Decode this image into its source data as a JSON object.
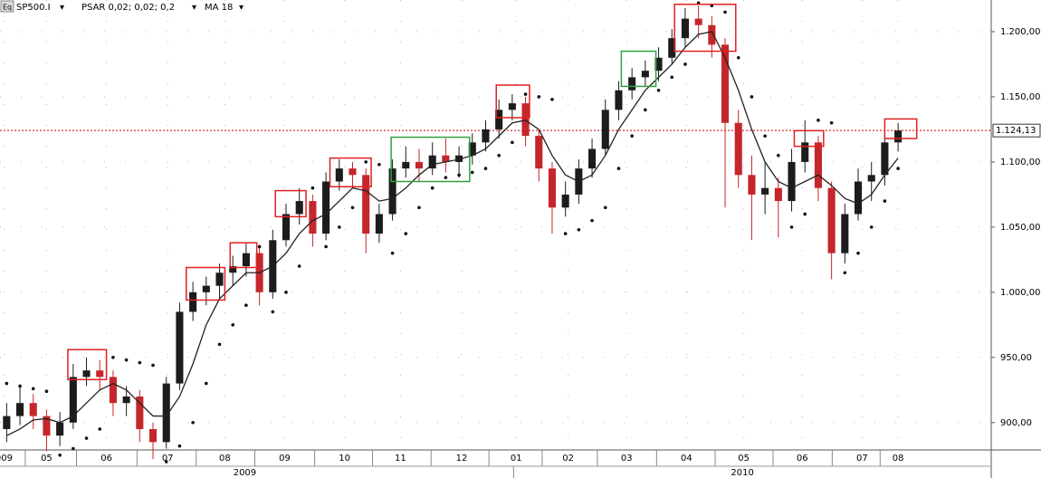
{
  "chart_data": {
    "type": "candlestick",
    "symbol": "SP500.I",
    "indicators": [
      "PSAR 0,02; 0,02; 0,2",
      "MA 18"
    ],
    "menu_icon": "Eq",
    "up_color": "#1c1c1c",
    "down_color": "#c4262b",
    "xlim": [
      -0.5,
      74
    ],
    "ylim": [
      879,
      1224.3
    ],
    "grid": true,
    "x": [
      0,
      1,
      2,
      3,
      4,
      5,
      6,
      7,
      8,
      9,
      10,
      11,
      12,
      13,
      14,
      15,
      16,
      17,
      18,
      19,
      20,
      21,
      22,
      23,
      24,
      25,
      26,
      27,
      28,
      29,
      30,
      31,
      32,
      33,
      34,
      35,
      36,
      37,
      38,
      39,
      40,
      41,
      42,
      43,
      44,
      45,
      46,
      47,
      48,
      49,
      50,
      51,
      52,
      53,
      54,
      55,
      56,
      57,
      58,
      59,
      60,
      61,
      62,
      63,
      64,
      65,
      66,
      67
    ],
    "candles": [
      [
        895,
        915,
        885,
        905
      ],
      [
        905,
        928,
        898,
        915
      ],
      [
        915,
        922,
        895,
        905
      ],
      [
        905,
        910,
        878,
        890
      ],
      [
        890,
        908,
        882,
        900
      ],
      [
        900,
        945,
        895,
        935
      ],
      [
        935,
        950,
        928,
        940
      ],
      [
        940,
        948,
        925,
        935
      ],
      [
        935,
        940,
        905,
        915
      ],
      [
        915,
        928,
        905,
        920
      ],
      [
        920,
        925,
        885,
        895
      ],
      [
        895,
        900,
        872,
        885
      ],
      [
        885,
        935,
        880,
        930
      ],
      [
        930,
        992,
        925,
        985
      ],
      [
        985,
        1008,
        978,
        1000
      ],
      [
        1000,
        1012,
        990,
        1005
      ],
      [
        1005,
        1022,
        995,
        1015
      ],
      [
        1015,
        1028,
        1005,
        1020
      ],
      [
        1020,
        1038,
        1012,
        1030
      ],
      [
        1030,
        1035,
        990,
        1000
      ],
      [
        1000,
        1048,
        995,
        1040
      ],
      [
        1040,
        1068,
        1035,
        1060
      ],
      [
        1060,
        1080,
        1052,
        1070
      ],
      [
        1070,
        1075,
        1035,
        1045
      ],
      [
        1045,
        1092,
        1040,
        1085
      ],
      [
        1085,
        1102,
        1078,
        1095
      ],
      [
        1095,
        1100,
        1080,
        1090
      ],
      [
        1090,
        1095,
        1030,
        1045
      ],
      [
        1045,
        1068,
        1038,
        1060
      ],
      [
        1060,
        1102,
        1055,
        1095
      ],
      [
        1095,
        1112,
        1088,
        1100
      ],
      [
        1100,
        1110,
        1085,
        1095
      ],
      [
        1095,
        1115,
        1090,
        1105
      ],
      [
        1105,
        1118,
        1092,
        1100
      ],
      [
        1100,
        1112,
        1088,
        1105
      ],
      [
        1105,
        1122,
        1098,
        1115
      ],
      [
        1115,
        1132,
        1108,
        1125
      ],
      [
        1125,
        1148,
        1118,
        1140
      ],
      [
        1140,
        1152,
        1132,
        1145
      ],
      [
        1145,
        1150,
        1112,
        1120
      ],
      [
        1120,
        1125,
        1085,
        1095
      ],
      [
        1095,
        1100,
        1045,
        1065
      ],
      [
        1065,
        1085,
        1058,
        1075
      ],
      [
        1075,
        1102,
        1068,
        1095
      ],
      [
        1095,
        1118,
        1088,
        1110
      ],
      [
        1110,
        1148,
        1105,
        1140
      ],
      [
        1140,
        1162,
        1132,
        1155
      ],
      [
        1155,
        1172,
        1148,
        1165
      ],
      [
        1165,
        1178,
        1158,
        1170
      ],
      [
        1170,
        1188,
        1162,
        1180
      ],
      [
        1180,
        1202,
        1175,
        1195
      ],
      [
        1195,
        1218,
        1188,
        1210
      ],
      [
        1210,
        1220,
        1195,
        1205
      ],
      [
        1205,
        1212,
        1180,
        1190
      ],
      [
        1190,
        1195,
        1065,
        1130
      ],
      [
        1130,
        1140,
        1080,
        1090
      ],
      [
        1090,
        1105,
        1040,
        1075
      ],
      [
        1075,
        1100,
        1060,
        1080
      ],
      [
        1080,
        1088,
        1042,
        1070
      ],
      [
        1070,
        1110,
        1062,
        1100
      ],
      [
        1100,
        1132,
        1092,
        1115
      ],
      [
        1115,
        1120,
        1070,
        1080
      ],
      [
        1080,
        1085,
        1010,
        1030
      ],
      [
        1030,
        1068,
        1022,
        1060
      ],
      [
        1060,
        1095,
        1055,
        1085
      ],
      [
        1085,
        1100,
        1070,
        1090
      ],
      [
        1090,
        1122,
        1082,
        1115
      ],
      [
        1115,
        1130,
        1108,
        1124.13
      ]
    ],
    "ma": [
      890,
      895,
      902,
      903,
      900,
      905,
      915,
      925,
      930,
      925,
      915,
      905,
      905,
      920,
      945,
      975,
      995,
      1005,
      1015,
      1015,
      1020,
      1030,
      1045,
      1055,
      1060,
      1070,
      1080,
      1078,
      1070,
      1072,
      1080,
      1090,
      1098,
      1100,
      1102,
      1105,
      1110,
      1120,
      1130,
      1132,
      1125,
      1105,
      1090,
      1085,
      1090,
      1105,
      1125,
      1140,
      1155,
      1165,
      1175,
      1188,
      1198,
      1200,
      1180,
      1155,
      1125,
      1100,
      1085,
      1080,
      1085,
      1090,
      1082,
      1072,
      1068,
      1075,
      1090,
      1103
    ],
    "psar": [
      930,
      928,
      926,
      924,
      875,
      880,
      888,
      895,
      950,
      948,
      946,
      944,
      870,
      882,
      900,
      930,
      960,
      975,
      990,
      1035,
      985,
      1000,
      1020,
      1080,
      1035,
      1050,
      1065,
      1100,
      1098,
      1030,
      1045,
      1065,
      1080,
      1088,
      1090,
      1092,
      1095,
      1105,
      1115,
      1152,
      1150,
      1148,
      1045,
      1048,
      1055,
      1065,
      1095,
      1120,
      1140,
      1155,
      1165,
      1175,
      1222,
      1220,
      1215,
      1180,
      1150,
      1120,
      1105,
      1050,
      1060,
      1132,
      1130,
      1015,
      1030,
      1050,
      1070,
      1095
    ],
    "last_value": {
      "value": 1124.13,
      "label": "1.124,13"
    },
    "last_color": "#d00000",
    "yticks": [
      {
        "value": 900,
        "label": "900,00"
      },
      {
        "value": 950,
        "label": "950,00"
      },
      {
        "value": 1000,
        "label": "1.000,00"
      },
      {
        "value": 1050,
        "label": "1.050,00"
      },
      {
        "value": 1100,
        "label": "1.100,00"
      },
      {
        "value": 1150,
        "label": "1.150,00"
      },
      {
        "value": 1200,
        "label": "1.200,00"
      }
    ],
    "xticks": [
      {
        "value": -0.2,
        "label": "009"
      },
      {
        "value": 3.0,
        "label": "05"
      },
      {
        "value": 7.5,
        "label": "06"
      },
      {
        "value": 12.1,
        "label": "07"
      },
      {
        "value": 16.4,
        "label": "08"
      },
      {
        "value": 20.9,
        "label": "09"
      },
      {
        "value": 25.4,
        "label": "10"
      },
      {
        "value": 29.6,
        "label": "11"
      },
      {
        "value": 34.2,
        "label": "12"
      },
      {
        "value": 38.3,
        "label": "01"
      },
      {
        "value": 42.2,
        "label": "02"
      },
      {
        "value": 46.6,
        "label": "03"
      },
      {
        "value": 51.1,
        "label": "04"
      },
      {
        "value": 55.4,
        "label": "05"
      },
      {
        "value": 59.8,
        "label": "06"
      },
      {
        "value": 64.3,
        "label": "07"
      },
      {
        "value": 67.0,
        "label": "08"
      }
    ],
    "year_ticks": [
      {
        "value": 17.9,
        "label": "2009"
      },
      {
        "value": 55.3,
        "label": "2010"
      }
    ],
    "highlights": [
      {
        "color": "#e02020",
        "x": [
          4.6,
          7.5
        ],
        "y": [
          933,
          956
        ]
      },
      {
        "color": "#e02020",
        "x": [
          13.5,
          16.4
        ],
        "y": [
          994,
          1019
        ]
      },
      {
        "color": "#e02020",
        "x": [
          16.8,
          18.8
        ],
        "y": [
          1019,
          1038
        ]
      },
      {
        "color": "#e02020",
        "x": [
          20.2,
          22.5
        ],
        "y": [
          1058,
          1078
        ]
      },
      {
        "color": "#e02020",
        "x": [
          24.3,
          27.4
        ],
        "y": [
          1081,
          1103
        ]
      },
      {
        "color": "#30a040",
        "x": [
          28.9,
          34.8
        ],
        "y": [
          1085,
          1119
        ]
      },
      {
        "color": "#e02020",
        "x": [
          36.8,
          39.3
        ],
        "y": [
          1134,
          1159
        ]
      },
      {
        "color": "#30a040",
        "x": [
          46.2,
          48.8
        ],
        "y": [
          1158,
          1185
        ]
      },
      {
        "color": "#e02020",
        "x": [
          50.2,
          54.8
        ],
        "y": [
          1185,
          1221
        ]
      },
      {
        "color": "#e02020",
        "x": [
          59.2,
          61.4
        ],
        "y": [
          1112,
          1124
        ]
      },
      {
        "color": "#e02020",
        "x": [
          66,
          68.4
        ],
        "y": [
          1118,
          1133
        ]
      }
    ]
  }
}
